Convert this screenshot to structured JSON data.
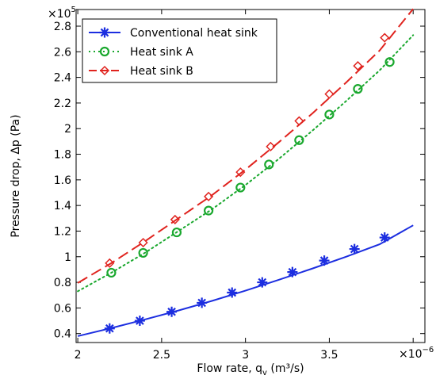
{
  "chart_data": {
    "type": "line",
    "xlabel": "Flow rate, q",
    "xlabel_sub": "v",
    "xlabel_unit": " (m³/s)",
    "ylabel": "Pressure drop, Δp (Pa)",
    "x_multiplier": "×10",
    "x_multiplier_exp": "−6",
    "y_multiplier": "×10",
    "y_multiplier_exp": "5",
    "xlim": [
      1.99,
      4.07
    ],
    "ylim": [
      0.33,
      2.93
    ],
    "x_ticks": [
      2,
      2.5,
      3,
      3.5,
      4
    ],
    "x_tick_labels": [
      "2",
      "2.5",
      "3",
      "3.5",
      ""
    ],
    "y_ticks": [
      0.4,
      0.6,
      0.8,
      1.0,
      1.2,
      1.4,
      1.6,
      1.8,
      2.0,
      2.2,
      2.4,
      2.6,
      2.8
    ],
    "y_tick_labels": [
      "0.4",
      "0.6",
      "0.8",
      "1",
      "1.2",
      "1.4",
      "1.6",
      "1.8",
      "2",
      "2.2",
      "2.4",
      "2.6",
      "2.8"
    ],
    "grid": false,
    "legend_position": "top-left",
    "series": [
      {
        "name": "Conventional heat sink",
        "color": "#1c2ee0",
        "line_style": "solid",
        "marker": "asterisk",
        "line_x": [
          2.0,
          2.2,
          2.4,
          2.6,
          2.8,
          3.0,
          3.2,
          3.4,
          3.6,
          3.8,
          4.0
        ],
        "line_y": [
          0.38,
          0.443,
          0.51,
          0.58,
          0.655,
          0.735,
          0.82,
          0.908,
          1.0,
          1.097,
          1.245
        ],
        "marker_x": [
          2.19,
          2.37,
          2.56,
          2.74,
          2.92,
          3.1,
          3.28,
          3.47,
          3.65,
          3.83
        ],
        "marker_y": [
          0.44,
          0.5,
          0.57,
          0.64,
          0.72,
          0.8,
          0.88,
          0.97,
          1.06,
          1.15
        ]
      },
      {
        "name": "Heat sink A",
        "color": "#1aa82e",
        "line_style": "dotted",
        "marker": "circle",
        "line_x": [
          2.0,
          2.2,
          2.4,
          2.6,
          2.8,
          3.0,
          3.2,
          3.4,
          3.6,
          3.8,
          4.0
        ],
        "line_y": [
          0.73,
          0.875,
          1.03,
          1.2,
          1.37,
          1.56,
          1.765,
          1.985,
          2.215,
          2.455,
          2.73
        ],
        "marker_x": [
          2.2,
          2.39,
          2.59,
          2.78,
          2.97,
          3.14,
          3.32,
          3.5,
          3.67,
          3.86
        ],
        "marker_y": [
          0.875,
          1.03,
          1.19,
          1.36,
          1.54,
          1.72,
          1.91,
          2.11,
          2.31,
          2.52
        ]
      },
      {
        "name": "Heat sink B",
        "color": "#e0231e",
        "line_style": "dashed",
        "marker": "diamond",
        "line_x": [
          2.0,
          2.2,
          2.4,
          2.6,
          2.8,
          3.0,
          3.2,
          3.4,
          3.6,
          3.8,
          4.0
        ],
        "line_y": [
          0.795,
          0.95,
          1.12,
          1.3,
          1.48,
          1.68,
          1.895,
          2.12,
          2.36,
          2.61,
          2.935
        ],
        "marker_x": [
          2.19,
          2.39,
          2.58,
          2.78,
          2.97,
          3.15,
          3.32,
          3.5,
          3.67,
          3.83
        ],
        "marker_y": [
          0.95,
          1.11,
          1.29,
          1.47,
          1.66,
          1.86,
          2.06,
          2.27,
          2.49,
          2.71
        ]
      }
    ]
  }
}
